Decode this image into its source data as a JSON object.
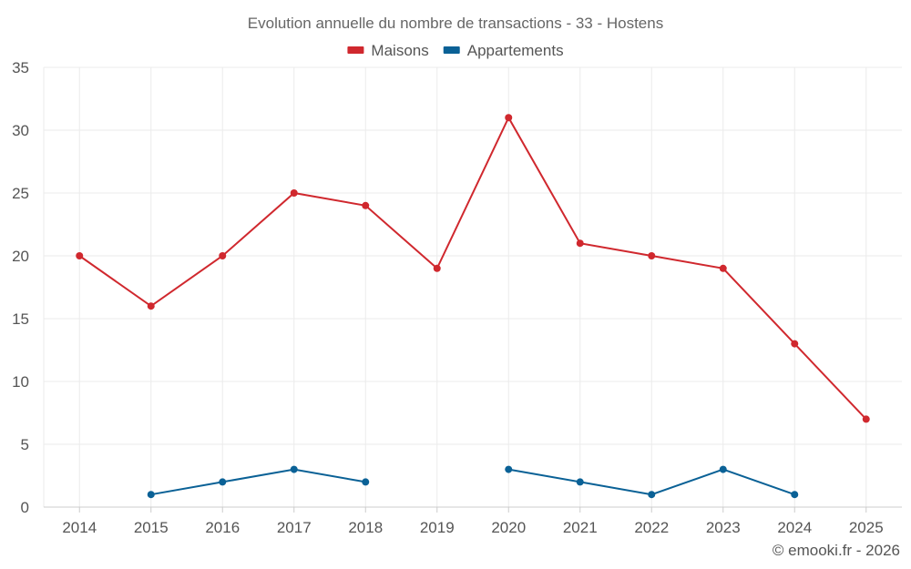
{
  "chart_data": {
    "type": "line",
    "title": "Evolution annuelle du nombre de transactions - 33 - Hostens",
    "categories": [
      "2014",
      "2015",
      "2016",
      "2017",
      "2018",
      "2019",
      "2020",
      "2021",
      "2022",
      "2023",
      "2024",
      "2025"
    ],
    "ylim": [
      0,
      35
    ],
    "yticks": [
      0,
      5,
      10,
      15,
      20,
      25,
      30,
      35
    ],
    "legend_position": "top-center",
    "grid": true,
    "series": [
      {
        "name": "Maisons",
        "color": "#d0282e",
        "values": [
          20,
          16,
          20,
          25,
          24,
          19,
          31,
          21,
          20,
          19,
          13,
          7
        ]
      },
      {
        "name": "Appartements",
        "color": "#0a6196",
        "values": [
          null,
          1,
          2,
          3,
          2,
          null,
          3,
          2,
          1,
          3,
          1,
          null
        ]
      }
    ]
  },
  "credit": "© emooki.fr - 2026"
}
